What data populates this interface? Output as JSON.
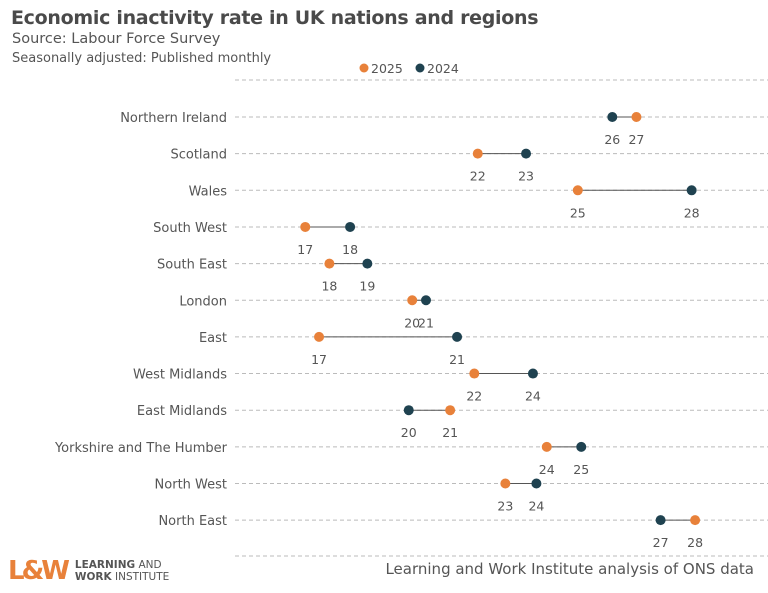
{
  "header": {
    "title": "Economic inactivity rate in UK nations and regions",
    "source": "Source: Labour Force Survey",
    "note": "Seasonally adjusted: Published monthly"
  },
  "footer": {
    "caption": "Learning and Work Institute analysis of ONS data",
    "logo_mark": "L&W",
    "logo_line1_bold": "LEARNING",
    "logo_line1_rest": " AND",
    "logo_line2_bold": "WORK",
    "logo_line2_rest": " INSTITUTE"
  },
  "colors": {
    "2025": "#e8813a",
    "2024": "#1f4250",
    "connector": "#555555",
    "grid": "#bbbbbb"
  },
  "chart_data": {
    "type": "dumbbell",
    "title": "Economic inactivity rate in UK nations and regions",
    "legend": {
      "position": "top",
      "entries": [
        "2025",
        "2024"
      ]
    },
    "grid": "horizontal dashed",
    "xlim": [
      16.5,
      28.5
    ],
    "categories": [
      "Northern Ireland",
      "Scotland",
      "Wales",
      "South West",
      "South East",
      "London",
      "East",
      "West Midlands",
      "East Midlands",
      "Yorkshire and The Humber",
      "North West",
      "North East"
    ],
    "series": [
      {
        "name": "2025",
        "values": [
          26.6,
          22.0,
          24.9,
          17.0,
          17.7,
          20.1,
          17.4,
          21.9,
          21.2,
          24.0,
          22.8,
          28.3
        ],
        "labels": [
          "27",
          "22",
          "25",
          "17",
          "18",
          "20",
          "17",
          "22",
          "21",
          "24",
          "23",
          "28"
        ]
      },
      {
        "name": "2024",
        "values": [
          25.9,
          23.4,
          28.2,
          18.3,
          18.8,
          20.5,
          21.4,
          23.6,
          20.0,
          25.0,
          23.7,
          27.3
        ],
        "labels": [
          "26",
          "23",
          "28",
          "18",
          "19",
          "21",
          "21",
          "24",
          "20",
          "25",
          "24",
          "27"
        ]
      }
    ]
  }
}
